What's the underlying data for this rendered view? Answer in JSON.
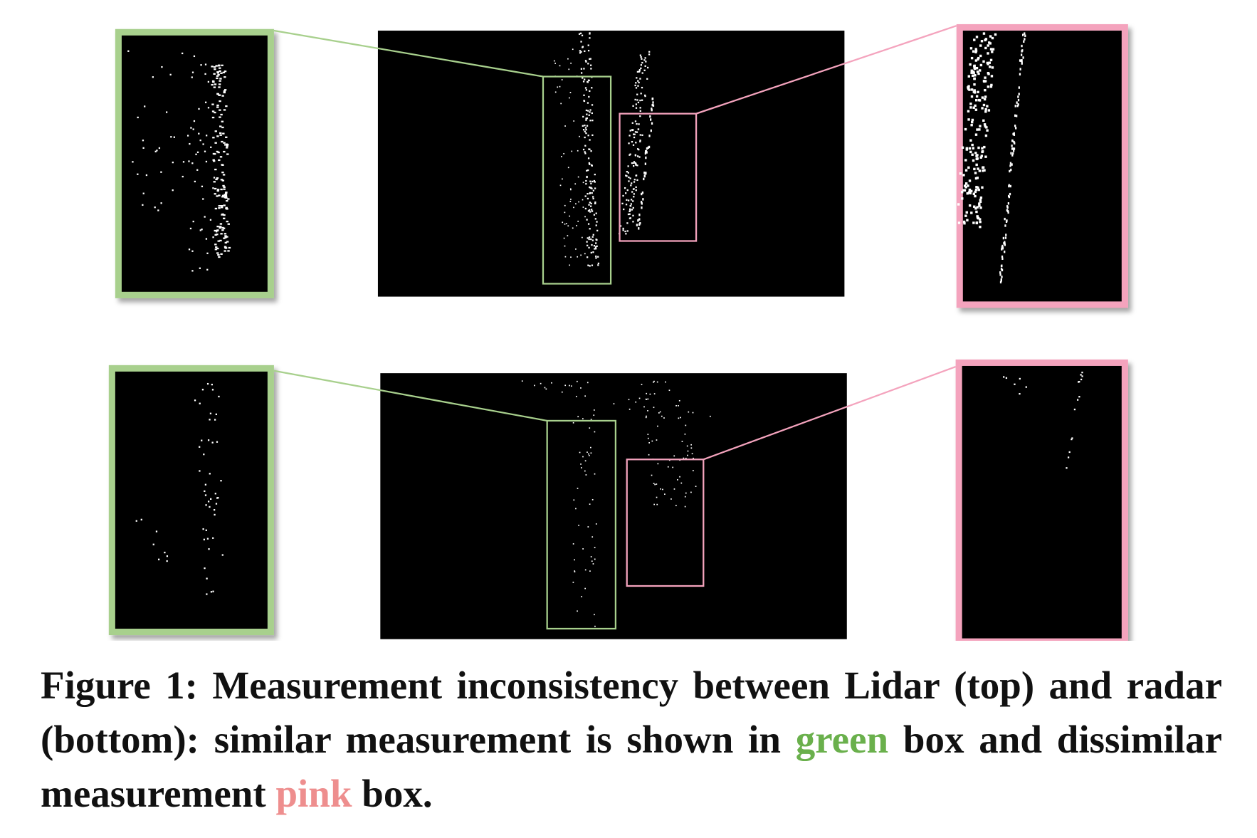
{
  "figure": {
    "caption": {
      "label": "Figure 1:",
      "text_before": "Measurement inconsistency between Lidar (top) and radar (bottom): similar measurement is shown in",
      "green_word": "green",
      "text_middle": "box and dissimilar measurement",
      "pink_word": "pink",
      "text_after": "box."
    }
  }
}
